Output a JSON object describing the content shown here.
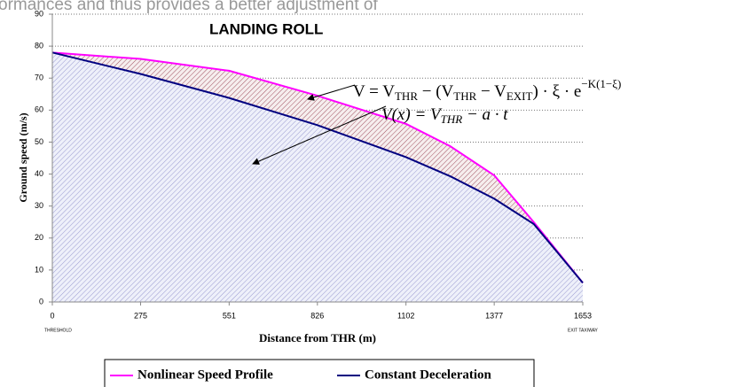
{
  "caption_fragment": "ormances and thus provides a better adjustment of",
  "chart_data": {
    "type": "line",
    "title": "LANDING ROLL",
    "ylabel": "Ground speed (m/s)",
    "xlabel": "Distance from THR (m)",
    "x_start_label": "THRESHOLD",
    "x_end_label": "EXIT TAXIWAY",
    "x": [
      0,
      275,
      551,
      826,
      1102,
      1240,
      1377,
      1500,
      1653
    ],
    "series": [
      {
        "name": "Nonlinear Speed Profile",
        "color": "#ff00ff",
        "values": [
          78,
          76,
          72.3,
          64.5,
          55.7,
          48.7,
          39.6,
          25,
          6
        ]
      },
      {
        "name": "Constant Deceleration",
        "color": "#000080",
        "values": [
          78,
          71.3,
          63.8,
          55.3,
          45.3,
          39.3,
          32.3,
          24.4,
          6
        ]
      }
    ],
    "xlim": [
      0,
      1653
    ],
    "xticks": [
      0,
      275,
      551,
      826,
      1102,
      1377,
      1653
    ],
    "ylim": [
      0,
      90
    ],
    "yticks": [
      0,
      10,
      20,
      30,
      40,
      50,
      60,
      70,
      80,
      90
    ],
    "grid": true,
    "annotations": [
      {
        "segments": [
          {
            "text": "V = V"
          },
          {
            "text": "THR",
            "shift": "sub"
          },
          {
            "text": " − (V"
          },
          {
            "text": "THR",
            "shift": "sub"
          },
          {
            "text": " − V"
          },
          {
            "text": "EXIT",
            "shift": "sub"
          },
          {
            "text": ") · ξ · e"
          },
          {
            "text": "−K(1−ξ)",
            "shift": "sup"
          }
        ]
      },
      {
        "segments": [
          {
            "text": "V(x) = V"
          },
          {
            "text": "THR",
            "shift": "sub"
          },
          {
            "text": " − a · t"
          }
        ],
        "italic": true
      }
    ]
  }
}
